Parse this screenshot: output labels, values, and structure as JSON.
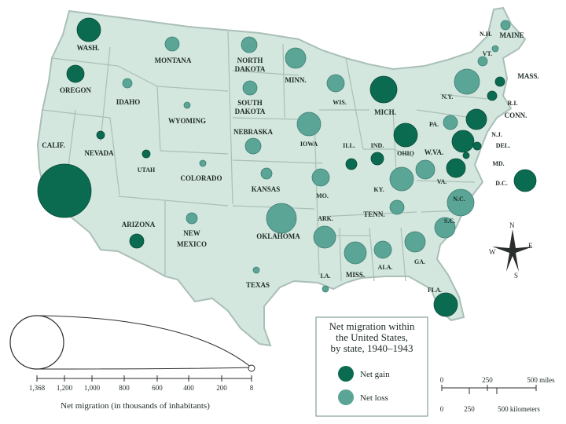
{
  "colors": {
    "gain": "#0b6b50",
    "loss": "#5aa596",
    "land": "#d4e7df",
    "ocean": "#ffffff",
    "border": "#a9bfb7"
  },
  "legend": {
    "title_lines": [
      "Net migration within",
      "the United States,",
      "by state, 1940–1943"
    ],
    "gain_label": "Net gain",
    "loss_label": "Net loss"
  },
  "size_scale": {
    "ticks": [
      "1,368",
      "1,200",
      "1,000",
      "800",
      "600",
      "400",
      "200",
      "8"
    ],
    "title": "Net migration (in thousands of inhabitants)"
  },
  "distance_scale": {
    "miles_ticks": [
      "0",
      "250",
      "500 miles"
    ],
    "km_ticks": [
      "0",
      "250",
      "500 kilometers"
    ]
  },
  "compass": {
    "n": "N",
    "s": "S",
    "e": "E",
    "w": "W"
  },
  "states": [
    {
      "label": "WASH.",
      "type": "gain"
    },
    {
      "label": "OREGON",
      "type": "gain"
    },
    {
      "label": "CALIF.",
      "type": "gain"
    },
    {
      "label": "NEVADA",
      "type": "gain"
    },
    {
      "label": "IDAHO",
      "type": "loss"
    },
    {
      "label": "MONTANA",
      "type": "loss"
    },
    {
      "label": "WYOMING",
      "type": "loss"
    },
    {
      "label": "UTAH",
      "type": "gain"
    },
    {
      "label": "COLORADO",
      "type": "loss"
    },
    {
      "label": "ARIZONA",
      "type": "gain"
    },
    {
      "label": "NEW MEXICO",
      "type": "loss"
    },
    {
      "label": "NORTH DAKOTA",
      "type": "loss"
    },
    {
      "label": "SOUTH DAKOTA",
      "type": "loss"
    },
    {
      "label": "NEBRASKA",
      "type": "loss"
    },
    {
      "label": "KANSAS",
      "type": "loss"
    },
    {
      "label": "OKLAHOMA",
      "type": "loss"
    },
    {
      "label": "TEXAS",
      "type": "loss"
    },
    {
      "label": "MINN.",
      "type": "loss"
    },
    {
      "label": "IOWA",
      "type": "loss"
    },
    {
      "label": "MO.",
      "type": "loss"
    },
    {
      "label": "ARK.",
      "type": "loss"
    },
    {
      "label": "LA.",
      "type": "loss"
    },
    {
      "label": "WIS.",
      "type": "loss"
    },
    {
      "label": "ILL.",
      "type": "gain"
    },
    {
      "label": "MICH.",
      "type": "gain"
    },
    {
      "label": "IND.",
      "type": "gain"
    },
    {
      "label": "OHIO",
      "type": "gain"
    },
    {
      "label": "KY.",
      "type": "loss"
    },
    {
      "label": "TENN.",
      "type": "loss"
    },
    {
      "label": "MISS.",
      "type": "loss"
    },
    {
      "label": "ALA.",
      "type": "loss"
    },
    {
      "label": "GA.",
      "type": "loss"
    },
    {
      "label": "FLA.",
      "type": "gain"
    },
    {
      "label": "S.C.",
      "type": "loss"
    },
    {
      "label": "N.C.",
      "type": "loss"
    },
    {
      "label": "VA.",
      "type": "gain"
    },
    {
      "label": "W.VA.",
      "type": "loss"
    },
    {
      "label": "PA.",
      "type": "loss"
    },
    {
      "label": "N.Y.",
      "type": "loss"
    },
    {
      "label": "N.J.",
      "type": "gain"
    },
    {
      "label": "DEL.",
      "type": "gain"
    },
    {
      "label": "MD.",
      "type": "gain"
    },
    {
      "label": "D.C.",
      "type": "gain"
    },
    {
      "label": "CONN.",
      "type": "gain"
    },
    {
      "label": "R.I.",
      "type": "gain"
    },
    {
      "label": "MASS.",
      "type": "gain"
    },
    {
      "label": "VT.",
      "type": "loss"
    },
    {
      "label": "N.H.",
      "type": "loss"
    },
    {
      "label": "MAINE",
      "type": "loss"
    }
  ]
}
